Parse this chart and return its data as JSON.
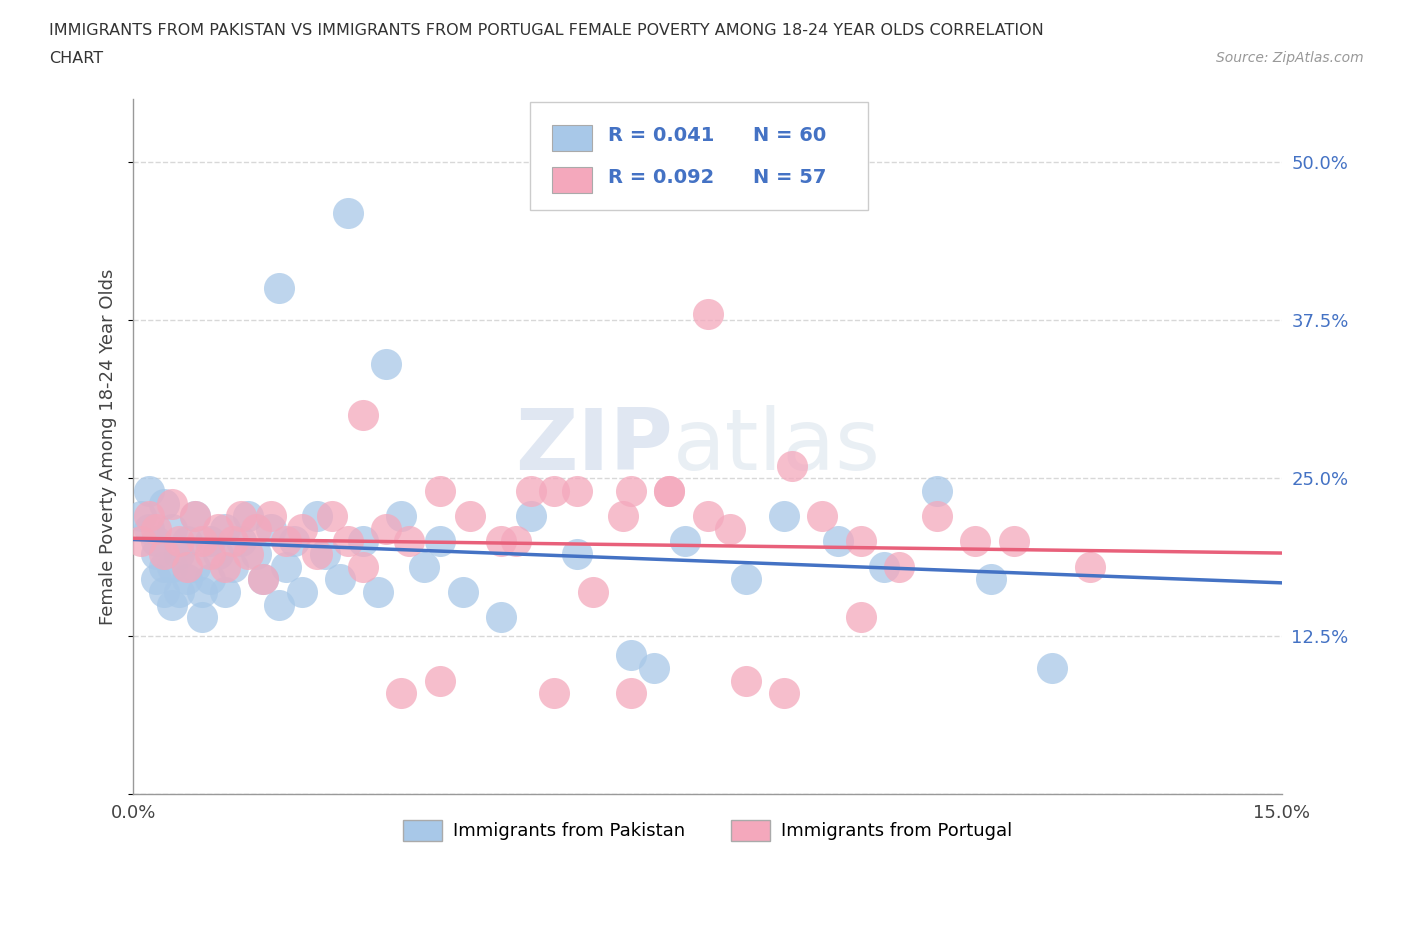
{
  "title_line1": "IMMIGRANTS FROM PAKISTAN VS IMMIGRANTS FROM PORTUGAL FEMALE POVERTY AMONG 18-24 YEAR OLDS CORRELATION",
  "title_line2": "CHART",
  "source": "Source: ZipAtlas.com",
  "ylabel": "Female Poverty Among 18-24 Year Olds",
  "xlim": [
    0.0,
    0.15
  ],
  "ylim": [
    0.0,
    0.55
  ],
  "yticks": [
    0.0,
    0.125,
    0.25,
    0.375,
    0.5
  ],
  "ytick_labels": [
    "",
    "12.5%",
    "25.0%",
    "37.5%",
    "50.0%"
  ],
  "xticks": [
    0.0,
    0.15
  ],
  "xtick_labels": [
    "0.0%",
    "15.0%"
  ],
  "pakistan_color": "#a8c8e8",
  "portugal_color": "#f4a8bc",
  "pakistan_line_color": "#4472c4",
  "portugal_line_color": "#e8607a",
  "legend_R_pakistan": "R = 0.041",
  "legend_N_pakistan": "N = 60",
  "legend_R_portugal": "R = 0.092",
  "legend_N_portugal": "N = 57",
  "pakistan_x": [
    0.001,
    0.002,
    0.002,
    0.003,
    0.003,
    0.003,
    0.004,
    0.004,
    0.004,
    0.005,
    0.005,
    0.005,
    0.006,
    0.006,
    0.007,
    0.007,
    0.008,
    0.008,
    0.009,
    0.009,
    0.01,
    0.01,
    0.011,
    0.012,
    0.012,
    0.013,
    0.014,
    0.015,
    0.016,
    0.017,
    0.018,
    0.019,
    0.02,
    0.021,
    0.022,
    0.024,
    0.025,
    0.027,
    0.03,
    0.032,
    0.035,
    0.038,
    0.04,
    0.043,
    0.048,
    0.052,
    0.058,
    0.065,
    0.072,
    0.08,
    0.085,
    0.092,
    0.098,
    0.105,
    0.112,
    0.028,
    0.033,
    0.019,
    0.12,
    0.068
  ],
  "pakistan_y": [
    0.22,
    0.24,
    0.21,
    0.2,
    0.19,
    0.17,
    0.18,
    0.16,
    0.23,
    0.21,
    0.18,
    0.15,
    0.19,
    0.16,
    0.2,
    0.17,
    0.22,
    0.18,
    0.16,
    0.14,
    0.2,
    0.17,
    0.19,
    0.21,
    0.16,
    0.18,
    0.2,
    0.22,
    0.19,
    0.17,
    0.21,
    0.15,
    0.18,
    0.2,
    0.16,
    0.22,
    0.19,
    0.17,
    0.2,
    0.16,
    0.22,
    0.18,
    0.2,
    0.16,
    0.14,
    0.22,
    0.19,
    0.11,
    0.2,
    0.17,
    0.22,
    0.2,
    0.18,
    0.24,
    0.17,
    0.46,
    0.34,
    0.4,
    0.1,
    0.1
  ],
  "portugal_x": [
    0.001,
    0.002,
    0.003,
    0.004,
    0.005,
    0.006,
    0.007,
    0.008,
    0.009,
    0.01,
    0.011,
    0.012,
    0.013,
    0.014,
    0.015,
    0.016,
    0.017,
    0.018,
    0.02,
    0.022,
    0.024,
    0.026,
    0.028,
    0.03,
    0.033,
    0.036,
    0.04,
    0.044,
    0.048,
    0.052,
    0.058,
    0.064,
    0.07,
    0.078,
    0.086,
    0.095,
    0.105,
    0.115,
    0.125,
    0.05,
    0.06,
    0.07,
    0.08,
    0.09,
    0.1,
    0.11,
    0.03,
    0.035,
    0.04,
    0.055,
    0.065,
    0.075,
    0.085,
    0.095,
    0.055,
    0.065,
    0.075
  ],
  "portugal_y": [
    0.2,
    0.22,
    0.21,
    0.19,
    0.23,
    0.2,
    0.18,
    0.22,
    0.2,
    0.19,
    0.21,
    0.18,
    0.2,
    0.22,
    0.19,
    0.21,
    0.17,
    0.22,
    0.2,
    0.21,
    0.19,
    0.22,
    0.2,
    0.18,
    0.21,
    0.2,
    0.24,
    0.22,
    0.2,
    0.24,
    0.24,
    0.22,
    0.24,
    0.21,
    0.26,
    0.2,
    0.22,
    0.2,
    0.18,
    0.2,
    0.16,
    0.24,
    0.09,
    0.22,
    0.18,
    0.2,
    0.3,
    0.08,
    0.09,
    0.08,
    0.08,
    0.38,
    0.08,
    0.14,
    0.24,
    0.24,
    0.22
  ],
  "watermark_zip": "ZIP",
  "watermark_atlas": "atlas",
  "background_color": "#ffffff",
  "grid_color": "#d8d8d8"
}
